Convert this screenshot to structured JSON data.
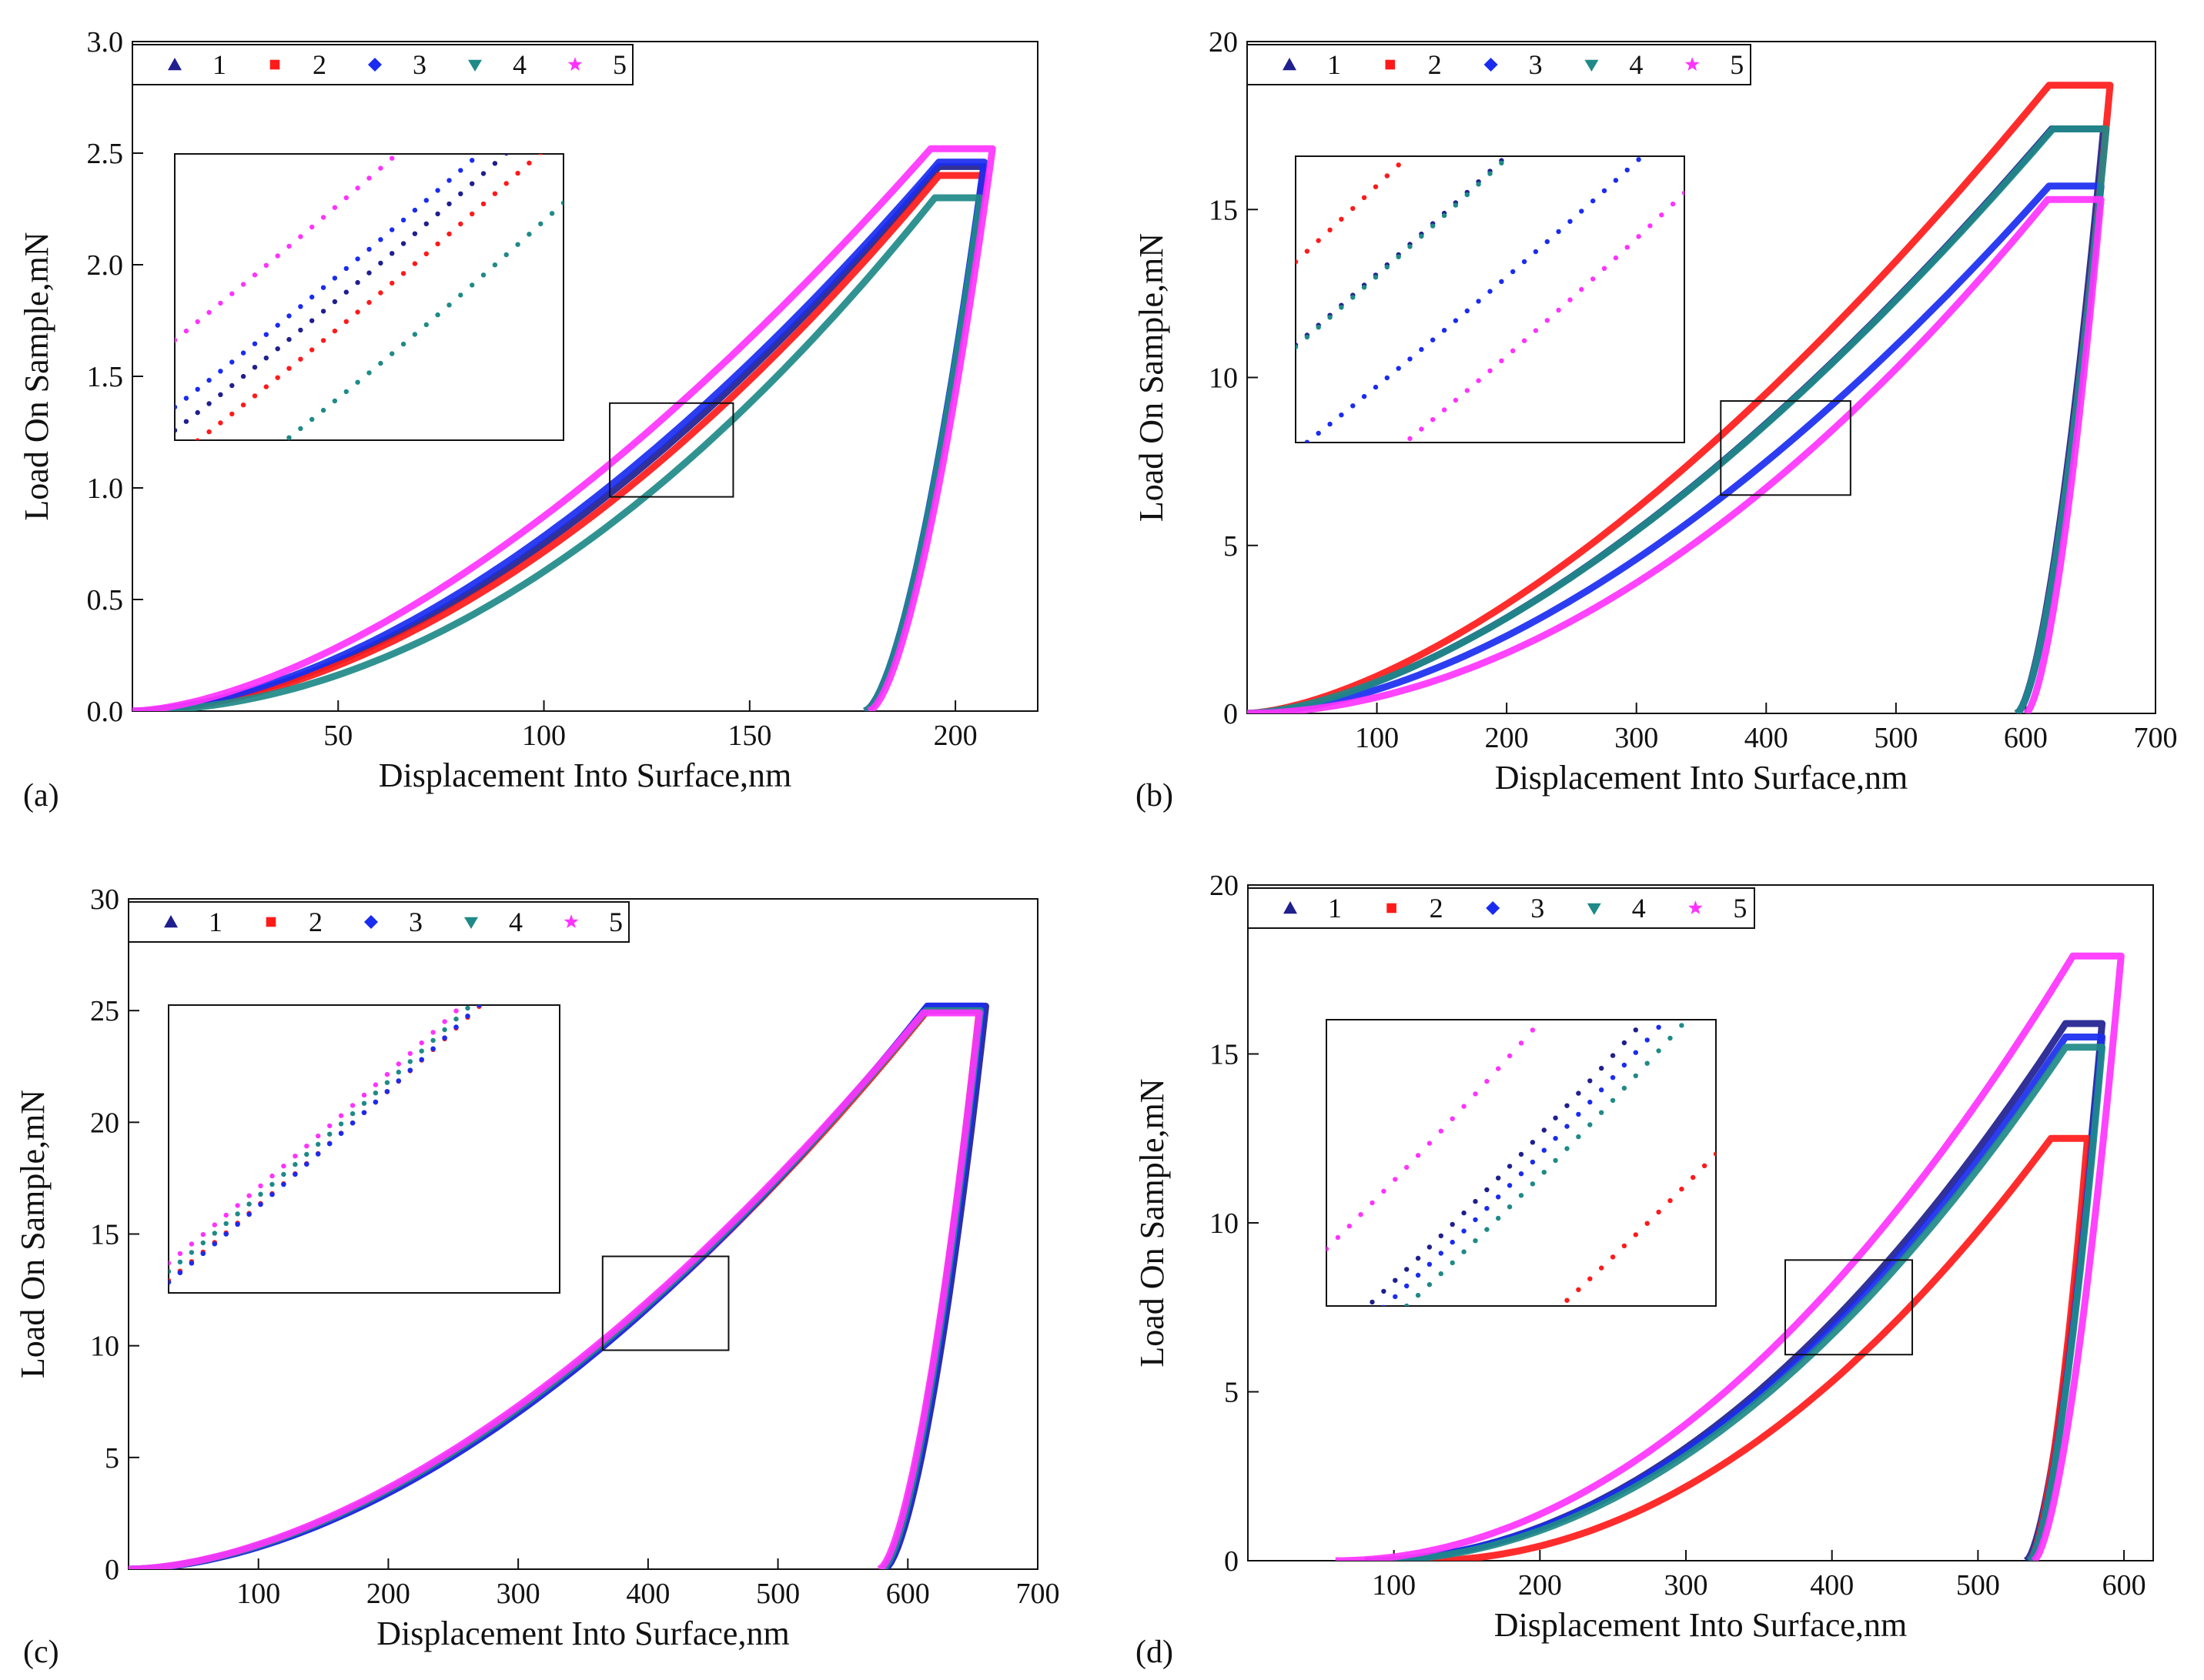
{
  "colors": {
    "1": "#1f1f8f",
    "2": "#ff1a1a",
    "3": "#1a2cf0",
    "4": "#1f8a88",
    "5": "#ff33ff",
    "axis": "#111111"
  },
  "legend": {
    "entries": [
      {
        "id": "1",
        "label": "1",
        "marker": "triangle"
      },
      {
        "id": "2",
        "label": "2",
        "marker": "square"
      },
      {
        "id": "3",
        "label": "3",
        "marker": "diamond"
      },
      {
        "id": "4",
        "label": "4",
        "marker": "tri-down"
      },
      {
        "id": "5",
        "label": "5",
        "marker": "star"
      }
    ]
  },
  "chart_data": [
    {
      "panel": "(a)",
      "type": "line",
      "xlabel": "Displacement Into Surface,nm",
      "ylabel": "Load On Sample,mN",
      "xlim": [
        0,
        220
      ],
      "ylim": [
        0,
        3.0
      ],
      "xticks": [
        "50",
        "100",
        "150",
        "200"
      ],
      "yticks": [
        "0.0",
        "0.5",
        "1.0",
        "1.5",
        "2.0",
        "2.5",
        "3.0"
      ],
      "inset": {
        "zoom_box_x": [
          116,
          146
        ],
        "zoom_box_y": [
          0.96,
          1.38
        ]
      },
      "series": [
        {
          "name": "1",
          "max_load": 2.44,
          "max_depth": 196,
          "hold_depth": 207,
          "residual_depth": 178,
          "exponent": 1.75
        },
        {
          "name": "2",
          "max_load": 2.4,
          "max_depth": 196,
          "hold_depth": 207,
          "residual_depth": 178,
          "exponent": 1.8
        },
        {
          "name": "3",
          "max_load": 2.46,
          "max_depth": 196,
          "hold_depth": 207,
          "residual_depth": 178,
          "exponent": 1.7
        },
        {
          "name": "4",
          "max_load": 2.3,
          "max_depth": 195,
          "hold_depth": 206,
          "residual_depth": 178,
          "exponent": 1.95
        },
        {
          "name": "5",
          "max_load": 2.52,
          "max_depth": 194,
          "hold_depth": 209,
          "residual_depth": 179,
          "exponent": 1.6
        }
      ]
    },
    {
      "panel": "(b)",
      "type": "line",
      "xlabel": "Displacement Into Surface,nm",
      "ylabel": "Load On Sample,mN",
      "xlim": [
        0,
        700
      ],
      "ylim": [
        0,
        20
      ],
      "xticks": [
        "100",
        "200",
        "300",
        "400",
        "500",
        "600",
        "700"
      ],
      "yticks": [
        "0",
        "5",
        "10",
        "15",
        "20"
      ],
      "inset": {
        "zoom_box_x": [
          365,
          465
        ],
        "zoom_box_y": [
          6.5,
          9.3
        ]
      },
      "series": [
        {
          "name": "1",
          "max_load": 17.4,
          "max_depth": 620,
          "hold_depth": 660,
          "residual_depth": 593,
          "exponent": 1.6
        },
        {
          "name": "2",
          "max_load": 18.7,
          "max_depth": 618,
          "hold_depth": 665,
          "residual_depth": 593,
          "exponent": 1.55
        },
        {
          "name": "3",
          "max_load": 15.7,
          "max_depth": 618,
          "hold_depth": 658,
          "residual_depth": 593,
          "exponent": 1.7
        },
        {
          "name": "4",
          "max_load": 17.4,
          "max_depth": 621,
          "hold_depth": 662,
          "residual_depth": 593,
          "exponent": 1.6
        },
        {
          "name": "5",
          "max_load": 15.3,
          "max_depth": 617,
          "hold_depth": 658,
          "residual_depth": 600,
          "exponent": 1.9
        }
      ]
    },
    {
      "panel": "(c)",
      "type": "line",
      "xlabel": "Displacement Into Surface,nm",
      "ylabel": "Load On Sample,mN",
      "xlim": [
        0,
        700
      ],
      "ylim": [
        0,
        30
      ],
      "xticks": [
        "100",
        "200",
        "300",
        "400",
        "500",
        "600",
        "700"
      ],
      "yticks": [
        "0",
        "5",
        "10",
        "15",
        "20",
        "25",
        "30"
      ],
      "inset": {
        "zoom_box_x": [
          365,
          462
        ],
        "zoom_box_y": [
          9.8,
          14.0
        ]
      },
      "series": [
        {
          "name": "1",
          "max_load": 25.2,
          "max_depth": 615,
          "hold_depth": 660,
          "residual_depth": 582,
          "exponent": 1.78
        },
        {
          "name": "2",
          "max_load": 25.0,
          "max_depth": 615,
          "hold_depth": 655,
          "residual_depth": 580,
          "exponent": 1.76
        },
        {
          "name": "3",
          "max_load": 25.2,
          "max_depth": 615,
          "hold_depth": 658,
          "residual_depth": 581,
          "exponent": 1.78
        },
        {
          "name": "4",
          "max_load": 25.0,
          "max_depth": 614,
          "hold_depth": 656,
          "residual_depth": 580,
          "exponent": 1.74
        },
        {
          "name": "5",
          "max_load": 24.9,
          "max_depth": 612,
          "hold_depth": 655,
          "residual_depth": 578,
          "exponent": 1.72
        }
      ]
    },
    {
      "panel": "(d)",
      "type": "line",
      "xlabel": "Displacement Into Surface,nm",
      "ylabel": "Load On Sample,mN",
      "xlim": [
        0,
        620
      ],
      "ylim": [
        0,
        20
      ],
      "xticks": [
        "100",
        "200",
        "300",
        "400",
        "500",
        "600"
      ],
      "yticks": [
        "0",
        "5",
        "10",
        "15",
        "20"
      ],
      "inset": {
        "zoom_box_x": [
          368,
          455
        ],
        "zoom_box_y": [
          6.1,
          8.9
        ]
      },
      "series": [
        {
          "name": "1",
          "max_load": 15.9,
          "max_depth": 560,
          "hold_depth": 585,
          "residual_depth": 533,
          "start_depth": 80,
          "exponent": 2.0
        },
        {
          "name": "2",
          "max_load": 12.5,
          "max_depth": 550,
          "hold_depth": 575,
          "residual_depth": 535,
          "start_depth": 120,
          "exponent": 2.0
        },
        {
          "name": "3",
          "max_load": 15.5,
          "max_depth": 560,
          "hold_depth": 585,
          "residual_depth": 535,
          "start_depth": 80,
          "exponent": 2.0
        },
        {
          "name": "4",
          "max_load": 15.2,
          "max_depth": 560,
          "hold_depth": 585,
          "residual_depth": 535,
          "start_depth": 85,
          "exponent": 2.0
        },
        {
          "name": "5",
          "max_load": 17.9,
          "max_depth": 565,
          "hold_depth": 598,
          "residual_depth": 538,
          "start_depth": 60,
          "exponent": 2.0
        }
      ]
    }
  ]
}
